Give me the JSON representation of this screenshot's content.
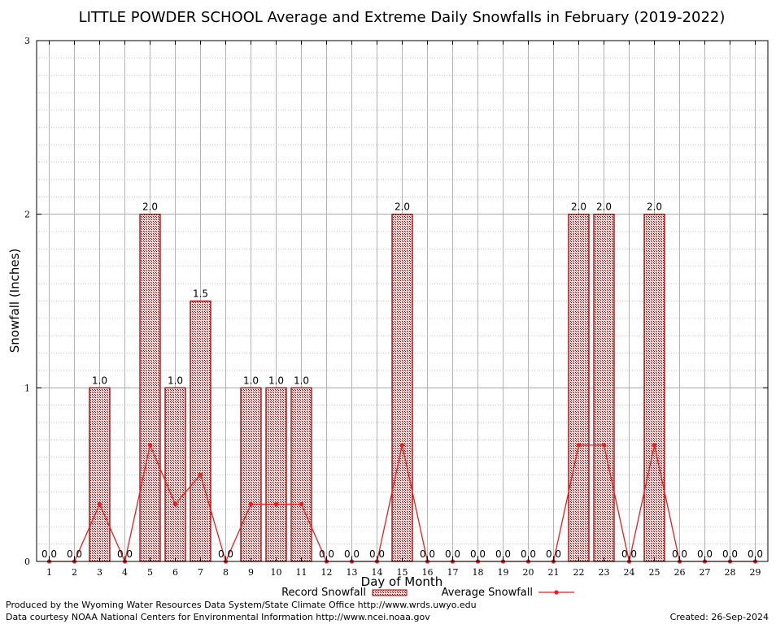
{
  "chart_data": {
    "type": "bar",
    "title": "LITTLE POWDER SCHOOL Average and Extreme Daily Snowfalls in February (2019-2022)",
    "xlabel": "Day of Month",
    "ylabel": "Snowfall (Inches)",
    "ylim": [
      0,
      3
    ],
    "yticks": [
      "0",
      "1",
      "2",
      "3"
    ],
    "categories": [
      "1",
      "2",
      "3",
      "4",
      "5",
      "6",
      "7",
      "8",
      "9",
      "10",
      "11",
      "12",
      "13",
      "14",
      "15",
      "16",
      "17",
      "18",
      "19",
      "20",
      "21",
      "22",
      "23",
      "24",
      "25",
      "26",
      "27",
      "28",
      "29"
    ],
    "series": [
      {
        "name": "Record Snowfall",
        "type": "bar",
        "color": "#b00000",
        "values": [
          0,
          0,
          1,
          0,
          2,
          1,
          1.5,
          0,
          1,
          1,
          1,
          0,
          0,
          0,
          2,
          0,
          0,
          0,
          0,
          0,
          0,
          2,
          2,
          0,
          2,
          0,
          0,
          0,
          0
        ],
        "labels": [
          "0.0",
          "0.0",
          "1.0",
          "0.0",
          "2.0",
          "1.0",
          "1.5",
          "0.0",
          "1.0",
          "1.0",
          "1.0",
          "0.0",
          "0.0",
          "0.0",
          "2.0",
          "0.0",
          "0.0",
          "0.0",
          "0.0",
          "0.0",
          "0.0",
          "2.0",
          "2.0",
          "0.0",
          "2.0",
          "0.0",
          "0.0",
          "0.0",
          "0.0"
        ]
      },
      {
        "name": "Average Snowfall",
        "type": "line",
        "color": "#ee1c1c",
        "values": [
          0,
          0,
          0.33,
          0,
          0.67,
          0.33,
          0.5,
          0,
          0.33,
          0.33,
          0.33,
          0,
          0,
          0,
          0.67,
          0,
          0,
          0,
          0,
          0,
          0,
          0.67,
          0.67,
          0,
          0.67,
          0,
          0,
          0,
          0
        ]
      }
    ],
    "grid": true,
    "legend_position": "bottom"
  },
  "footer": {
    "line1": "Produced by the Wyoming Water Resources Data System/State Climate Office http://www.wrds.uwyo.edu",
    "line2": "Data courtesy NOAA National Centers for Environmental Information http://www.ncei.noaa.gov",
    "created": "Created: 26-Sep-2024"
  }
}
